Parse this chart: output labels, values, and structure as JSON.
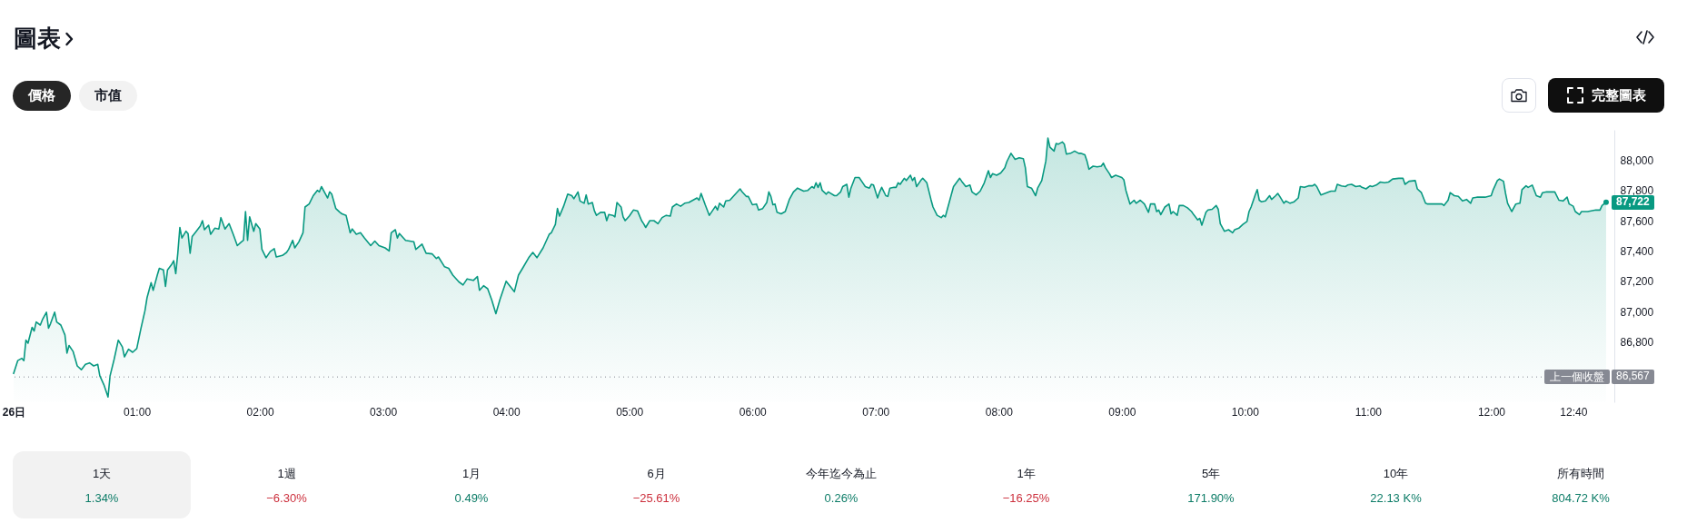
{
  "chart_data": [
    {
      "type": "area",
      "title": "圖表",
      "color": "#089981",
      "x": [
        "--01-26T00:00",
        "--01-26T00:02",
        "--01-26T00:04",
        "--01-26T00:05",
        "--01-26T00:06",
        "--01-26T00:07",
        "--01-26T00:09",
        "--01-26T00:10",
        "--01-26T00:11",
        "--01-26T00:13",
        "--01-26T00:14",
        "--01-26T00:16",
        "--01-26T00:17",
        "--01-26T00:18",
        "--01-26T00:20",
        "--01-26T00:21",
        "--01-26T00:23",
        "--01-26T00:25",
        "--01-26T00:26",
        "--01-26T00:27",
        "--01-26T00:29",
        "--01-26T00:31",
        "--01-26T00:33",
        "--01-26T00:35",
        "--01-26T00:37",
        "--01-26T00:39",
        "--01-26T00:41",
        "--01-26T00:42",
        "--01-26T00:44",
        "--01-26T00:46",
        "--01-26T00:47",
        "--01-26T00:49",
        "--01-26T00:51",
        "--01-26T00:53",
        "--01-26T00:54",
        "--01-26T00:56",
        "--01-26T00:58",
        "--01-26T01:00",
        "--01-26T01:02",
        "--01-26T01:04",
        "--01-26T01:05",
        "--01-26T01:07",
        "--01-26T01:08",
        "--01-26T01:10",
        "--01-26T01:11",
        "--01-26T01:13",
        "--01-26T01:14",
        "--01-26T01:15",
        "--01-26T01:17",
        "--01-26T01:18",
        "--01-26T01:19",
        "--01-26T01:20",
        "--01-26T01:21",
        "--01-26T01:22",
        "--01-26T01:24",
        "--01-26T01:25",
        "--01-26T01:26",
        "--01-26T01:27",
        "--01-26T01:29",
        "--01-26T01:31",
        "--01-26T01:32",
        "--01-26T01:33",
        "--01-26T01:35",
        "--01-26T01:36",
        "--01-26T01:38",
        "--01-26T01:40",
        "--01-26T01:41",
        "--01-26T01:43",
        "--01-26T01:45",
        "--01-26T01:47",
        "--01-26T01:49",
        "--01-26T01:51",
        "--01-26T01:52",
        "--01-26T01:53",
        "--01-26T01:54",
        "--01-26T01:55",
        "--01-26T01:57",
        "--01-26T01:58",
        "--01-26T02:00",
        "--01-26T02:01",
        "--01-26T02:03",
        "--01-26T02:05",
        "--01-26T02:07",
        "--01-26T02:08",
        "--01-26T02:11",
        "--01-26T02:13",
        "--01-26T02:14",
        "--01-26T02:16",
        "--01-26T02:17",
        "--01-26T02:19",
        "--01-26T02:21",
        "--01-26T02:22",
        "--01-26T02:24",
        "--01-26T02:26",
        "--01-26T02:28",
        "--01-26T02:29",
        "--01-26T02:30",
        "--01-26T02:32",
        "--01-26T02:33",
        "--01-26T02:34",
        "--01-26T02:35",
        "--01-26T02:37",
        "--01-26T02:39",
        "--01-26T02:40",
        "--01-26T02:42",
        "--01-26T02:44",
        "--01-26T02:45",
        "--01-26T02:47",
        "--01-26T02:49",
        "--01-26T02:51",
        "--01-26T02:54",
        "--01-26T02:56",
        "--01-26T02:58",
        "--01-26T03:01",
        "--01-26T03:03",
        "--01-26T03:04",
        "--01-26T03:06",
        "--01-26T03:07",
        "--01-26T03:08",
        "--01-26T03:11",
        "--01-26T03:13",
        "--01-26T03:15",
        "--01-26T03:16",
        "--01-26T03:19",
        "--01-26T03:21",
        "--01-26T03:24",
        "--01-26T03:26",
        "--01-26T03:27",
        "--01-26T03:30",
        "--01-26T03:32",
        "--01-26T03:34",
        "--01-26T03:37",
        "--01-26T03:39",
        "--01-26T03:41",
        "--01-26T03:44",
        "--01-26T03:46",
        "--01-26T03:47",
        "--01-26T03:49",
        "--01-26T03:51",
        "--01-26T03:53",
        "--01-26T03:55",
        "--01-26T03:57",
        "--01-26T04:00",
        "--01-26T04:02",
        "--01-26T04:04",
        "--01-26T04:06",
        "--01-26T04:08",
        "--01-26T04:11",
        "--01-26T04:13",
        "--01-26T04:15",
        "--01-26T04:18",
        "--01-26T04:21",
        "--01-26T04:22",
        "--01-26T04:24",
        "--01-26T04:25",
        "--01-26T04:26",
        "--01-26T04:28",
        "--01-26T04:30",
        "--01-26T04:32",
        "--01-26T04:33",
        "--01-26T04:35",
        "--01-26T04:36",
        "--01-26T04:38",
        "--01-26T04:39",
        "--01-26T04:40",
        "--01-26T04:42",
        "--01-26T04:43",
        "--01-26T04:44",
        "--01-26T04:46",
        "--01-26T04:48",
        "--01-26T04:49",
        "--01-26T04:50",
        "--01-26T04:52",
        "--01-26T04:53",
        "--01-26T04:54",
        "--01-26T04:56",
        "--01-26T04:57",
        "--01-26T04:58",
        "--01-26T05:00",
        "--01-26T05:02",
        "--01-26T05:04",
        "--01-26T05:06",
        "--01-26T05:07",
        "--01-26T05:08",
        "--01-26T05:10",
        "--01-26T05:12",
        "--01-26T05:14",
        "--01-26T05:16",
        "--01-26T05:18",
        "--01-26T05:20",
        "--01-26T05:21",
        "--01-26T05:23",
        "--01-26T05:25",
        "--01-26T05:27",
        "--01-26T05:29",
        "--01-26T05:31",
        "--01-26T05:33",
        "--01-26T05:34",
        "--01-26T05:35",
        "--01-26T05:37",
        "--01-26T05:39",
        "--01-26T05:40",
        "--01-26T05:42",
        "--01-26T05:43",
        "--01-26T05:44",
        "--01-26T05:46",
        "--01-26T05:47",
        "--01-26T05:49",
        "--01-26T05:51",
        "--01-26T05:54",
        "--01-26T05:55",
        "--01-26T05:57",
        "--01-26T05:58",
        "--01-26T06:00",
        "--01-26T06:02",
        "--01-26T06:03",
        "--01-26T06:05",
        "--01-26T06:07",
        "--01-26T06:08",
        "--01-26T06:09",
        "--01-26T06:10",
        "--01-26T06:11",
        "--01-26T06:12",
        "--01-26T06:14",
        "--01-26T06:16",
        "--01-26T06:18",
        "--01-26T06:20",
        "--01-26T06:22",
        "--01-26T06:25",
        "--01-26T06:27",
        "--01-26T06:29",
        "--01-26T06:30",
        "--01-26T06:31",
        "--01-26T06:32",
        "--01-26T06:33",
        "--01-26T06:34",
        "--01-26T06:36",
        "--01-26T06:37",
        "--01-26T06:40",
        "--01-26T06:41",
        "--01-26T06:43",
        "--01-26T06:44",
        "--01-26T06:46",
        "--01-26T06:47",
        "--01-26T06:48",
        "--01-26T06:50",
        "--01-26T06:52",
        "--01-26T06:54",
        "--01-26T06:55",
        "--01-26T06:57",
        "--01-26T06:58",
        "--01-26T06:59",
        "--01-26T07:01",
        "--01-26T07:02",
        "--01-26T07:03",
        "--01-26T07:05",
        "--01-26T07:06",
        "--01-26T07:07",
        "--01-26T07:09",
        "--01-26T07:10",
        "--01-26T07:11",
        "--01-26T07:12",
        "--01-26T07:14",
        "--01-26T07:15",
        "--01-26T07:17",
        "--01-26T07:18",
        "--01-26T07:19",
        "--01-26T07:20",
        "--01-26T07:22",
        "--01-26T07:23",
        "--01-26T07:25",
        "--01-26T07:27",
        "--01-26T07:28",
        "--01-26T07:30",
        "--01-26T07:32",
        "--01-26T07:33",
        "--01-26T07:34",
        "--01-26T07:37",
        "--01-26T07:38",
        "--01-26T07:41",
        "--01-26T07:42",
        "--01-26T07:44",
        "--01-26T07:46",
        "--01-26T07:47",
        "--01-26T07:49",
        "--01-26T07:51",
        "--01-26T07:53",
        "--01-26T07:55",
        "--01-26T07:56",
        "--01-26T07:57",
        "--01-26T07:59",
        "--01-26T08:01",
        "--01-26T08:03",
        "--01-26T08:04",
        "--01-26T08:06",
        "--01-26T08:08",
        "--01-26T08:10",
        "--01-26T08:12",
        "--01-26T08:13",
        "--01-26T08:14",
        "--01-26T08:16",
        "--01-26T08:18",
        "--01-26T08:19",
        "--01-26T08:21",
        "--01-26T08:23",
        "--01-26T08:24",
        "--01-26T08:25",
        "--01-26T08:27",
        "--01-26T08:28",
        "--01-26T08:29",
        "--01-26T08:31",
        "--01-26T08:32",
        "--01-26T08:33",
        "--01-26T08:35",
        "--01-26T08:37",
        "--01-26T08:39",
        "--01-26T08:40",
        "--01-26T08:42",
        "--01-26T08:43",
        "--01-26T08:44",
        "--01-26T08:46",
        "--01-26T08:48",
        "--01-26T08:50",
        "--01-26T08:51",
        "--01-26T08:52",
        "--01-26T08:54",
        "--01-26T08:55",
        "--01-26T08:57",
        "--01-26T09:00",
        "--01-26T09:01",
        "--01-26T09:02",
        "--01-26T09:04",
        "--01-26T09:06",
        "--01-26T09:07",
        "--01-26T09:09",
        "--01-26T09:11",
        "--01-26T09:13",
        "--01-26T09:14",
        "--01-26T09:16",
        "--01-26T09:17",
        "--01-26T09:18",
        "--01-26T09:19",
        "--01-26T09:21",
        "--01-26T09:23",
        "--01-26T09:24",
        "--01-26T09:25",
        "--01-26T09:27",
        "--01-26T09:28",
        "--01-26T09:30",
        "--01-26T09:32",
        "--01-26T09:34",
        "--01-26T09:35",
        "--01-26T09:37",
        "--01-26T09:38",
        "--01-26T09:39",
        "--01-26T09:41",
        "--01-26T09:42",
        "--01-26T09:44",
        "--01-26T09:46",
        "--01-26T09:47",
        "--01-26T09:48",
        "--01-26T09:50",
        "--01-26T09:52",
        "--01-26T09:54",
        "--01-26T09:55",
        "--01-26T09:57",
        "--01-26T09:59",
        "--01-26T10:01",
        "--01-26T10:02",
        "--01-26T10:03",
        "--01-26T10:05",
        "--01-26T10:06",
        "--01-26T10:07",
        "--01-26T10:08",
        "--01-26T10:10",
        "--01-26T10:12",
        "--01-26T10:13",
        "--01-26T10:15",
        "--01-26T10:16",
        "--01-26T10:17",
        "--01-26T10:19",
        "--01-26T10:20",
        "--01-26T10:22",
        "--01-26T10:24",
        "--01-26T10:26",
        "--01-26T10:27",
        "--01-26T10:29",
        "--01-26T10:31",
        "--01-26T10:33",
        "--01-26T10:34",
        "--01-26T10:35",
        "--01-26T10:37",
        "--01-26T10:39",
        "--01-26T10:41",
        "--01-26T10:42",
        "--01-26T10:44",
        "--01-26T10:45",
        "--01-26T10:47",
        "--01-26T10:49",
        "--01-26T10:50",
        "--01-26T10:52",
        "--01-26T10:54",
        "--01-26T10:56",
        "--01-26T10:57",
        "--01-26T10:59",
        "--01-26T11:01",
        "--01-26T11:02",
        "--01-26T11:04",
        "--01-26T11:06",
        "--01-26T11:08",
        "--01-26T11:10",
        "--01-26T11:12",
        "--01-26T11:15",
        "--01-26T11:17",
        "--01-26T11:18",
        "--01-26T11:20",
        "--01-26T11:23",
        "--01-26T11:24",
        "--01-26T11:26",
        "--01-26T11:28",
        "--01-26T11:29",
        "--01-26T11:32",
        "--01-26T11:36",
        "--01-26T11:37",
        "--01-26T11:39",
        "--01-26T11:40",
        "--01-26T11:42",
        "--01-26T11:44",
        "--01-26T11:46",
        "--01-26T11:48",
        "--01-26T11:50",
        "--01-26T11:51",
        "--01-26T11:53",
        "--01-26T11:57",
        "--01-26T12:00",
        "--01-26T12:01",
        "--01-26T12:03",
        "--01-26T12:04",
        "--01-26T12:06",
        "--01-26T12:07",
        "--01-26T12:08",
        "--01-26T12:10",
        "--01-26T12:12",
        "--01-26T12:14",
        "--01-26T12:15",
        "--01-26T12:17",
        "--01-26T12:18",
        "--01-26T12:20",
        "--01-26T12:22",
        "--01-26T12:24",
        "--01-26T12:25",
        "--01-26T12:27",
        "--01-26T12:31",
        "--01-26T12:33",
        "--01-26T12:35",
        "--01-26T12:37",
        "--01-26T12:38",
        "--01-26T12:40",
        "--01-26T12:41",
        "--01-26T12:43",
        "--01-26T12:44",
        "--01-26T12:47",
        "--01-26T12:51",
        "--01-26T12:53",
        "--01-26T12:54",
        "--01-26T12:56"
      ],
      "values": [
        86590,
        86675,
        86690,
        86675,
        86810,
        86790,
        86895,
        86870,
        86930,
        86910,
        86945,
        86995,
        86890,
        86920,
        86995,
        86930,
        86910,
        86845,
        86725,
        86775,
        86735,
        86640,
        86615,
        86650,
        86660,
        86640,
        86650,
        86575,
        86515,
        86435,
        86575,
        86685,
        86810,
        86765,
        86700,
        86750,
        86730,
        86755,
        86885,
        87005,
        87090,
        87190,
        87140,
        87240,
        87285,
        87275,
        87165,
        87275,
        87310,
        87335,
        87250,
        87385,
        87555,
        87485,
        87530,
        87515,
        87385,
        87495,
        87530,
        87565,
        87600,
        87540,
        87570,
        87510,
        87550,
        87545,
        87620,
        87545,
        87580,
        87510,
        87435,
        87460,
        87470,
        87660,
        87470,
        87625,
        87530,
        87580,
        87545,
        87410,
        87355,
        87395,
        87415,
        87360,
        87370,
        87390,
        87410,
        87470,
        87420,
        87460,
        87520,
        87690,
        87710,
        87765,
        87800,
        87790,
        87825,
        87775,
        87750,
        87790,
        87775,
        87680,
        87655,
        87645,
        87635,
        87520,
        87545,
        87510,
        87520,
        87485,
        87435,
        87465,
        87435,
        87420,
        87400,
        87520,
        87540,
        87485,
        87515,
        87470,
        87465,
        87460,
        87410,
        87445,
        87385,
        87380,
        87350,
        87360,
        87295,
        87285,
        87240,
        87195,
        87175,
        87215,
        87205,
        87230,
        87140,
        87170,
        87150,
        87075,
        86985,
        87080,
        87200,
        87165,
        87130,
        87240,
        87285,
        87355,
        87390,
        87355,
        87420,
        87510,
        87520,
        87575,
        87680,
        87630,
        87695,
        87775,
        87765,
        87745,
        87790,
        87730,
        87715,
        87770,
        87710,
        87720,
        87665,
        87635,
        87655,
        87655,
        87600,
        87640,
        87635,
        87625,
        87720,
        87690,
        87625,
        87600,
        87630,
        87670,
        87665,
        87600,
        87580,
        87555,
        87600,
        87600,
        87580,
        87620,
        87635,
        87630,
        87690,
        87710,
        87695,
        87715,
        87720,
        87735,
        87750,
        87735,
        87780,
        87705,
        87635,
        87655,
        87695,
        87670,
        87715,
        87690,
        87730,
        87735,
        87765,
        87810,
        87790,
        87760,
        87760,
        87705,
        87710,
        87670,
        87680,
        87720,
        87790,
        87760,
        87705,
        87710,
        87655,
        87645,
        87660,
        87740,
        87790,
        87815,
        87795,
        87800,
        87825,
        87815,
        87850,
        87820,
        87850,
        87800,
        87775,
        87790,
        87765,
        87765,
        87790,
        87825,
        87840,
        87755,
        87815,
        87885,
        87885,
        87845,
        87825,
        87815,
        87840,
        87835,
        87750,
        87790,
        87820,
        87765,
        87760,
        87815,
        87820,
        87820,
        87850,
        87840,
        87880,
        87865,
        87900,
        87865,
        87885,
        87825,
        87865,
        87880,
        87850,
        87740,
        87690,
        87635,
        87620,
        87635,
        87625,
        87775,
        87825,
        87880,
        87860,
        87825,
        87835,
        87790,
        87770,
        87795,
        87850,
        87930,
        87885,
        87910,
        87900,
        87915,
        87950,
        87990,
        88045,
        88005,
        88015,
        88010,
        87950,
        87825,
        87815,
        87765,
        87815,
        87865,
        87995,
        88145,
        88085,
        88060,
        88110,
        88105,
        88120,
        88105,
        88040,
        88045,
        88060,
        88045,
        88045,
        88035,
        87995,
        87940,
        87960,
        87955,
        87960,
        87980,
        87950,
        87910,
        87885,
        87900,
        87885,
        87870,
        87800,
        87710,
        87735,
        87715,
        87735,
        87710,
        87655,
        87710,
        87710,
        87660,
        87670,
        87640,
        87690,
        87710,
        87645,
        87660,
        87635,
        87700,
        87700,
        87685,
        87660,
        87640,
        87605,
        87615,
        87570,
        87655,
        87670,
        87675,
        87700,
        87675,
        87580,
        87530,
        87540,
        87520,
        87540,
        87550,
        87575,
        87595,
        87660,
        87690,
        87770,
        87805,
        87735,
        87725,
        87730,
        87765,
        87740,
        87765,
        87780,
        87760,
        87715,
        87730,
        87715,
        87725,
        87750,
        87825,
        87820,
        87830,
        87830,
        87840,
        87825,
        87770,
        87780,
        87790,
        87795,
        87795,
        87840,
        87830,
        87825,
        87835,
        87840,
        87825,
        87830,
        87820,
        87810,
        87830,
        87825,
        87835,
        87855,
        87850,
        87855,
        87875,
        87880,
        87880,
        87840,
        87860,
        87865,
        87810,
        87785,
        87715,
        87710,
        87710,
        87710,
        87700,
        87735,
        87785,
        87765,
        87760,
        87730,
        87740,
        87715,
        87750,
        87755,
        87755,
        87765,
        87805,
        87865,
        87875,
        87860,
        87780,
        87715,
        87660,
        87710,
        87715,
        87805,
        87830,
        87820,
        87835,
        87765,
        87755,
        87785,
        87790,
        87790,
        87735,
        87730,
        87755,
        87710,
        87695,
        87660,
        87640,
        87660,
        87660,
        87670,
        87670,
        87700,
        87722
      ],
      "xlim": [
        "--01-26T00:00",
        "--01-26T13:00"
      ],
      "ylim": [
        86400,
        88200
      ],
      "xticks": [
        {
          "value": "--01-26T00:00",
          "label": "26日"
        },
        {
          "value": "--01-26T01:00",
          "label": "01:00"
        },
        {
          "value": "--01-26T02:00",
          "label": "02:00"
        },
        {
          "value": "--01-26T03:00",
          "label": "03:00"
        },
        {
          "value": "--01-26T04:00",
          "label": "04:00"
        },
        {
          "value": "--01-26T05:00",
          "label": "05:00"
        },
        {
          "value": "--01-26T06:00",
          "label": "06:00"
        },
        {
          "value": "--01-26T07:00",
          "label": "07:00"
        },
        {
          "value": "--01-26T08:00",
          "label": "08:00"
        },
        {
          "value": "--01-26T09:00",
          "label": "09:00"
        },
        {
          "value": "--01-26T10:00",
          "label": "10:00"
        },
        {
          "value": "--01-26T11:00",
          "label": "11:00"
        },
        {
          "value": "--01-26T12:00",
          "label": "12:00"
        },
        {
          "value": "--01-26T12:40",
          "label": "12:40"
        }
      ],
      "yticks": [
        {
          "value": 86800,
          "label": "86,800"
        },
        {
          "value": 87000,
          "label": "87,000"
        },
        {
          "value": 87200,
          "label": "87,200"
        },
        {
          "value": 87400,
          "label": "87,400"
        },
        {
          "value": 87600,
          "label": "87,600"
        },
        {
          "value": 87800,
          "label": "87,800"
        },
        {
          "value": 88000,
          "label": "88,000"
        }
      ],
      "ref_lines": [
        {
          "axis": "y",
          "value": 86567,
          "label": "上一個收盤",
          "color": "#868993",
          "line_style": "dotted"
        }
      ],
      "annotations": [
        "價格",
        "市值",
        "完整圖表",
        "86,567",
        {
          "text": "87,722",
          "x": "--01-26T12:56",
          "y": 87722
        }
      ]
    },
    {
      "type": "other",
      "categories": [
        "1天",
        "1週",
        "1月",
        "6月",
        "今年迄今為止",
        "1年",
        "5年",
        "10年",
        "所有時間"
      ],
      "value_labels": [
        "1.34%",
        "−6.30%",
        "0.49%",
        "−25.61%",
        "0.26%",
        "−16.25%",
        "171.90%",
        "22.13 K%",
        "804.72 K%"
      ],
      "colors": [
        "#0c7c67",
        "#cc2f3c",
        "#0c7c67",
        "#cc2f3c",
        "#0c7c67",
        "#cc2f3c",
        "#0c7c67",
        "#0c7c67",
        "#0c7c67"
      ]
    }
  ]
}
